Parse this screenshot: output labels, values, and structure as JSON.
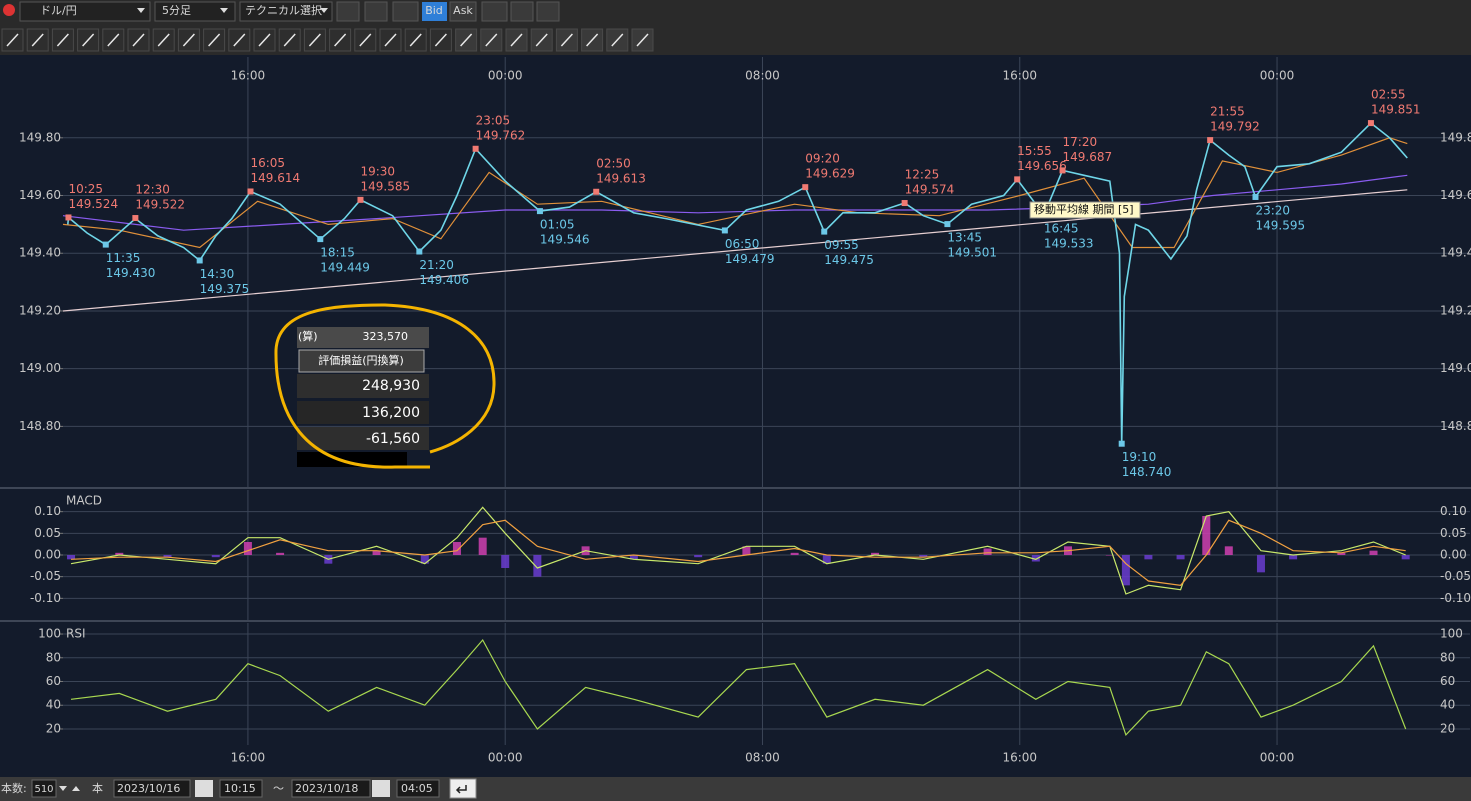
{
  "toolbar": {
    "pair": "ドル/円",
    "timeframe": "5分足",
    "technical": "テクニカル選択",
    "bid": "Bid",
    "ask": "Ask"
  },
  "chart_data": [
    {
      "type": "line",
      "xlim": [
        10.25,
        54.0
      ],
      "ylim": [
        148.59,
        150.08
      ],
      "grid": true,
      "xticks": [
        {
          "value": 16,
          "label": "16:00"
        },
        {
          "value": 24,
          "label": "00:00"
        },
        {
          "value": 32,
          "label": "08:00"
        },
        {
          "value": 40,
          "label": "16:00"
        },
        {
          "value": 48,
          "label": "00:00"
        }
      ],
      "yticks": [
        {
          "value": 148.8,
          "label": "148.80"
        },
        {
          "value": 149.0,
          "label": "149.00"
        },
        {
          "value": 149.2,
          "label": "149.20"
        },
        {
          "value": 149.4,
          "label": "149.40"
        },
        {
          "value": 149.6,
          "label": "149.60"
        },
        {
          "value": 149.8,
          "label": "149.80"
        }
      ],
      "series": [
        {
          "color": "#8a5cf0",
          "x": [
            10.25,
            14,
            17,
            20,
            24,
            27,
            30,
            33,
            36,
            39,
            42,
            44,
            46,
            48,
            50,
            52.05
          ],
          "values": [
            149.53,
            149.48,
            149.5,
            149.52,
            149.55,
            149.55,
            149.54,
            149.55,
            149.55,
            149.55,
            149.56,
            149.57,
            149.6,
            149.62,
            149.64,
            149.67
          ]
        },
        {
          "color": "#e0903a",
          "x": [
            10.25,
            12,
            14.5,
            16.3,
            18.5,
            20.5,
            22,
            23.5,
            25,
            27,
            30,
            33,
            35,
            37.5,
            40,
            42,
            43.5,
            44.8,
            46.3,
            48,
            50,
            51.5,
            52.05
          ],
          "values": [
            149.5,
            149.48,
            149.42,
            149.58,
            149.5,
            149.52,
            149.45,
            149.68,
            149.57,
            149.58,
            149.5,
            149.57,
            149.54,
            149.53,
            149.6,
            149.66,
            149.42,
            149.42,
            149.72,
            149.68,
            149.74,
            149.8,
            149.78
          ]
        },
        {
          "color": "#6fd6e8",
          "x": [
            10.4,
            10.42,
            11,
            11.58,
            12.5,
            13.2,
            14,
            14.5,
            15,
            15.5,
            16.08,
            17,
            18.25,
            19,
            19.5,
            20.5,
            21.33,
            22,
            22.5,
            23.08,
            24,
            25.08,
            26,
            26.83,
            28,
            29,
            30.83,
            31.5,
            32.5,
            33.33,
            33.92,
            34.5,
            35.5,
            36.42,
            37,
            37.75,
            38.5,
            39.5,
            39.92,
            40.75,
            41.33,
            42,
            42.8,
            43.1,
            43.17,
            43.25,
            43.6,
            44,
            44.7,
            45.2,
            45.5,
            45.92,
            46.5,
            47,
            47.33,
            48,
            49,
            50,
            50.92,
            51.5,
            52.05
          ],
          "values": [
            149.5,
            149.524,
            149.47,
            149.43,
            149.52,
            149.46,
            149.42,
            149.375,
            149.46,
            149.52,
            149.614,
            149.57,
            149.449,
            149.52,
            149.585,
            149.53,
            149.406,
            149.48,
            149.6,
            149.762,
            149.65,
            149.546,
            149.56,
            149.613,
            149.54,
            149.52,
            149.479,
            149.55,
            149.58,
            149.629,
            149.475,
            149.54,
            149.54,
            149.574,
            149.53,
            149.501,
            149.57,
            149.6,
            149.656,
            149.533,
            149.687,
            149.67,
            149.65,
            149.4,
            148.74,
            149.25,
            149.5,
            149.48,
            149.38,
            149.46,
            149.62,
            149.792,
            149.74,
            149.7,
            149.595,
            149.7,
            149.71,
            149.75,
            149.851,
            149.8,
            149.73
          ]
        }
      ],
      "trendline": {
        "color": "#e6cfd2",
        "x": [
          10.25,
          52.05
        ],
        "values": [
          149.2,
          149.62
        ]
      },
      "annotations": [
        {
          "kind": "high",
          "x": 10.42,
          "time": "10:25",
          "value": 149.524
        },
        {
          "kind": "high",
          "x": 12.5,
          "time": "12:30",
          "value": 149.522
        },
        {
          "kind": "high",
          "x": 16.08,
          "time": "16:05",
          "value": 149.614
        },
        {
          "kind": "high",
          "x": 19.5,
          "time": "19:30",
          "value": 149.585
        },
        {
          "kind": "high",
          "x": 23.08,
          "time": "23:05",
          "value": 149.762
        },
        {
          "kind": "high",
          "x": 26.83,
          "time": "02:50",
          "value": 149.613
        },
        {
          "kind": "high",
          "x": 33.33,
          "time": "09:20",
          "value": 149.629
        },
        {
          "kind": "high",
          "x": 36.42,
          "time": "12:25",
          "value": 149.574
        },
        {
          "kind": "high",
          "x": 39.92,
          "time": "15:55",
          "value": 149.656
        },
        {
          "kind": "high",
          "x": 41.33,
          "time": "17:20",
          "value": 149.687
        },
        {
          "kind": "high",
          "x": 45.92,
          "time": "21:55",
          "value": 149.792
        },
        {
          "kind": "high",
          "x": 50.92,
          "time": "02:55",
          "value": 149.851
        },
        {
          "kind": "low",
          "x": 11.58,
          "time": "11:35",
          "value": 149.43,
          "label": "149.430"
        },
        {
          "kind": "low",
          "x": 14.5,
          "time": "14:30",
          "value": 149.375
        },
        {
          "kind": "low",
          "x": 18.25,
          "time": "18:15",
          "value": 149.449
        },
        {
          "kind": "low",
          "x": 21.33,
          "time": "21:20",
          "value": 149.406
        },
        {
          "kind": "low",
          "x": 25.08,
          "time": "01:05",
          "value": 149.546
        },
        {
          "kind": "low",
          "x": 30.83,
          "time": "06:50",
          "value": 149.479
        },
        {
          "kind": "low",
          "x": 33.92,
          "time": "09:55",
          "value": 149.475
        },
        {
          "kind": "low",
          "x": 37.75,
          "time": "13:45",
          "value": 149.501
        },
        {
          "kind": "low",
          "x": 40.75,
          "time": "16:45",
          "value": 149.533
        },
        {
          "kind": "low",
          "x": 43.17,
          "time": "19:10",
          "value": 148.74,
          "label": "148.740"
        },
        {
          "kind": "low",
          "x": 47.33,
          "time": "23:20",
          "value": 149.595
        }
      ],
      "tooltip": "移動平均線 期間 [5]"
    },
    {
      "type": "macd",
      "title": "MACD",
      "xlim": [
        10.25,
        54.0
      ],
      "ylim": [
        -0.15,
        0.15
      ],
      "grid": true,
      "yticks": [
        {
          "value": -0.1,
          "label": "-0.10"
        },
        -0.05,
        {
          "value": 0,
          "label": "0.00"
        },
        0.05,
        {
          "value": 0.1,
          "label": "0.10"
        }
      ],
      "x": [
        10.5,
        12,
        13.5,
        15,
        16,
        17,
        18.5,
        20,
        21.5,
        22.5,
        23.3,
        24,
        25,
        26.5,
        28,
        30,
        31.5,
        33,
        34,
        35.5,
        37,
        39,
        40.5,
        41.5,
        42.8,
        43.3,
        44,
        45,
        45.8,
        46.5,
        47.5,
        48.5,
        50,
        51,
        52
      ],
      "series": [
        {
          "color": "#c8e86a",
          "values": [
            -0.02,
            0.0,
            -0.01,
            -0.02,
            0.04,
            0.04,
            -0.01,
            0.02,
            -0.02,
            0.04,
            0.11,
            0.05,
            -0.03,
            0.01,
            -0.01,
            -0.02,
            0.02,
            0.02,
            -0.02,
            0.0,
            -0.01,
            0.02,
            -0.01,
            0.03,
            0.02,
            -0.09,
            -0.07,
            -0.08,
            0.09,
            0.1,
            0.01,
            0.0,
            0.01,
            0.03,
            0.0
          ]
        },
        {
          "color": "#f0a040",
          "values": [
            -0.01,
            -0.005,
            -0.005,
            -0.015,
            0.01,
            0.035,
            0.01,
            0.01,
            0.0,
            0.01,
            0.07,
            0.08,
            0.02,
            -0.01,
            0.0,
            -0.015,
            0.0,
            0.015,
            0.0,
            -0.005,
            -0.005,
            0.005,
            0.005,
            0.01,
            0.02,
            -0.02,
            -0.06,
            -0.07,
            0.0,
            0.08,
            0.05,
            0.01,
            0.005,
            0.02,
            0.01
          ]
        }
      ],
      "histogram": {
        "positive_color": "#d040b0",
        "negative_color": "#6a3cd0",
        "values": [
          -0.01,
          0.005,
          -0.005,
          -0.005,
          0.03,
          0.005,
          -0.02,
          0.01,
          -0.02,
          0.03,
          0.04,
          -0.03,
          -0.05,
          0.02,
          -0.01,
          -0.005,
          0.02,
          0.005,
          -0.02,
          0.005,
          -0.005,
          0.015,
          -0.015,
          0.02,
          0.0,
          -0.07,
          -0.01,
          -0.01,
          0.09,
          0.02,
          -0.04,
          -0.01,
          0.005,
          0.01,
          -0.01
        ]
      }
    },
    {
      "type": "rsi",
      "title": "RSI",
      "xlim": [
        10.25,
        54.0
      ],
      "ylim": [
        6.5,
        109.3
      ],
      "grid": true,
      "yticks": [
        20,
        40,
        60,
        80,
        100
      ],
      "x": [
        10.5,
        12,
        13.5,
        15,
        16,
        17,
        18.5,
        20,
        21.5,
        22.5,
        23.3,
        24,
        25,
        26.5,
        28,
        30,
        31.5,
        33,
        34,
        35.5,
        37,
        39,
        40.5,
        41.5,
        42.8,
        43.3,
        44,
        45,
        45.8,
        46.5,
        47.5,
        48.5,
        50,
        51,
        52
      ],
      "series": [
        {
          "color": "#a8d850",
          "values": [
            45,
            50,
            35,
            45,
            75,
            65,
            35,
            55,
            40,
            70,
            95,
            60,
            20,
            55,
            45,
            30,
            70,
            75,
            30,
            45,
            40,
            70,
            45,
            60,
            55,
            15,
            35,
            40,
            85,
            75,
            30,
            40,
            60,
            90,
            20
          ]
        }
      ]
    }
  ],
  "overlay": {
    "top_label": "(算)",
    "top_value": "323,570",
    "button": "評価損益(円換算)",
    "rows": [
      "248,930",
      "136,200",
      "-61,560"
    ]
  },
  "footer": {
    "count_label": "本数:",
    "count": "510",
    "unit": "本",
    "from_date": "2023/10/16",
    "from_time": "10:15",
    "tilde": "～",
    "to_date": "2023/10/18",
    "to_time": "04:05"
  }
}
